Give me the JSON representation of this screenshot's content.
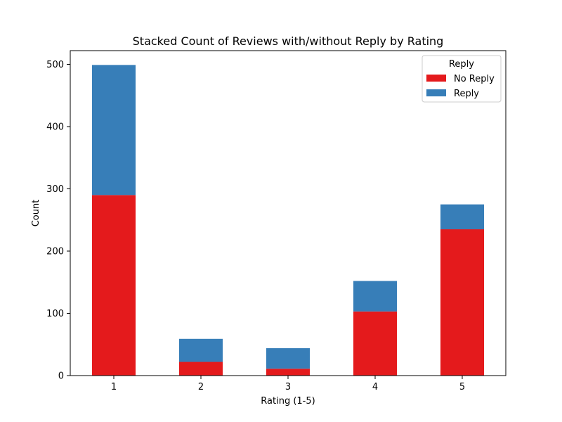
{
  "chart_data": {
    "type": "bar",
    "stacked": true,
    "title": "Stacked Count of Reviews with/without Reply by Rating",
    "xlabel": "Rating (1-5)",
    "ylabel": "Count",
    "categories": [
      "1",
      "2",
      "3",
      "4",
      "5"
    ],
    "ylim": [
      0,
      522
    ],
    "yticks": [
      0,
      100,
      200,
      300,
      400,
      500
    ],
    "grid": false,
    "legend": {
      "title": "Reply",
      "placement": "top-right"
    },
    "series": [
      {
        "name": "No Reply",
        "color": "#e41a1c",
        "values": [
          290,
          22,
          11,
          103,
          235
        ]
      },
      {
        "name": "Reply",
        "color": "#377eb8",
        "values": [
          209,
          37,
          33,
          49,
          40
        ]
      }
    ]
  }
}
